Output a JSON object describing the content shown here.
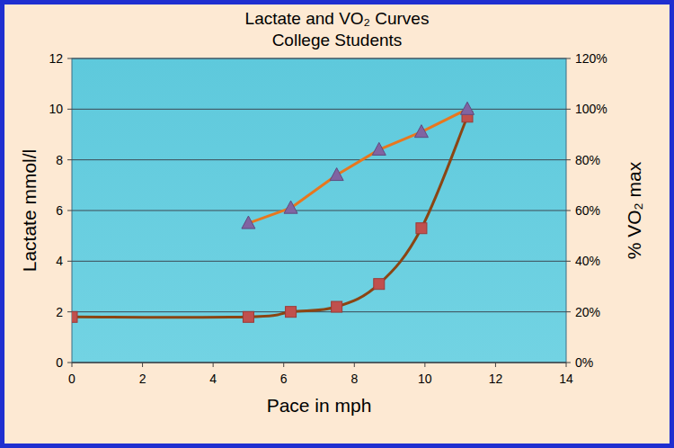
{
  "chart_data": {
    "type": "line",
    "title": "Lactate and VO₂ Curves",
    "subtitle": "College Students",
    "x_label": "Pace in mph",
    "y_label": "Lactate mmol/l",
    "y2_label": "% VO₂ max",
    "xlim": [
      0,
      14
    ],
    "xticks": [
      0,
      2,
      4,
      6,
      8,
      10,
      12,
      14
    ],
    "ylim": [
      0,
      12
    ],
    "yticks": [
      0,
      2,
      4,
      6,
      8,
      10,
      12
    ],
    "y2lim": [
      0,
      120
    ],
    "y2ticks": [
      {
        "value": 0,
        "label": "0%"
      },
      {
        "value": 20,
        "label": "20%"
      },
      {
        "value": 40,
        "label": "40%"
      },
      {
        "value": 60,
        "label": "60%"
      },
      {
        "value": 80,
        "label": "80%"
      },
      {
        "value": 100,
        "label": "100%"
      },
      {
        "value": 120,
        "label": "120%"
      }
    ],
    "grid": true,
    "series": [
      {
        "x": [
          0,
          5,
          6.2,
          7.5,
          8.7,
          9.9,
          11.2
        ],
        "values": [
          1.8,
          1.8,
          2.0,
          2.2,
          3.1,
          5.3,
          9.7
        ],
        "color": "#8b4513",
        "marker": "square",
        "line_style": "smooth"
      },
      {
        "x": [
          5,
          6.2,
          7.5,
          8.7,
          9.9,
          11.2
        ],
        "values": [
          55,
          61,
          74,
          84,
          91,
          100
        ],
        "color": "#e8771e",
        "marker": "triangle",
        "line_style": "solid",
        "axis": "y2"
      }
    ]
  }
}
